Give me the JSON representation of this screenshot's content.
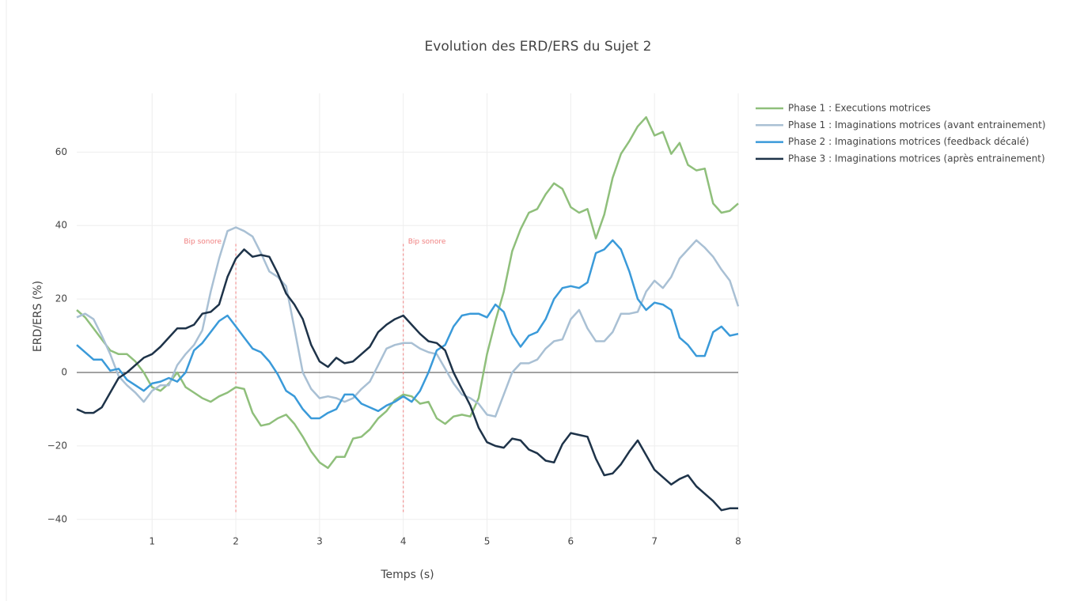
{
  "chart_data": {
    "type": "line",
    "title": "Evolution des ERD/ERS du Sujet 2",
    "x_label": "Temps (s)",
    "y_label": "ERD/ERS (%)",
    "xlim": [
      0.1,
      8
    ],
    "ylim": [
      -45,
      76
    ],
    "xticks": [
      1,
      2,
      3,
      4,
      5,
      6,
      7,
      8
    ],
    "yticks": [
      {
        "value": -40,
        "label": "−40"
      },
      {
        "value": -20,
        "label": "−20"
      },
      0,
      20,
      40,
      60
    ],
    "grid": true,
    "legend": "top-right",
    "x": [
      0.1,
      0.2,
      0.3,
      0.4,
      0.5,
      0.6,
      0.7,
      0.8,
      0.9,
      1.0,
      1.1,
      1.2,
      1.3,
      1.4,
      1.5,
      1.6,
      1.7,
      1.8,
      1.9,
      2.0,
      2.1,
      2.2,
      2.3,
      2.4,
      2.5,
      2.6,
      2.7,
      2.8,
      2.9,
      3.0,
      3.1,
      3.2,
      3.3,
      3.4,
      3.5,
      3.6,
      3.7,
      3.8,
      3.9,
      4.0,
      4.1,
      4.2,
      4.3,
      4.4,
      4.5,
      4.6,
      4.7,
      4.8,
      4.9,
      5.0,
      5.1,
      5.2,
      5.3,
      5.4,
      5.5,
      5.6,
      5.7,
      5.8,
      5.9,
      6.0,
      6.1,
      6.2,
      6.3,
      6.4,
      6.5,
      6.6,
      6.7,
      6.8,
      6.9,
      7.0,
      7.1,
      7.2,
      7.3,
      7.4,
      7.5,
      7.6,
      7.7,
      7.8,
      7.9,
      8.0
    ],
    "series": [
      {
        "name": "Phase 1 : Executions motrices",
        "color": "#8fbf7b",
        "values": [
          17,
          15,
          12,
          9,
          6,
          5,
          5,
          3,
          0,
          -4,
          -5,
          -3,
          0,
          -4,
          -5.5,
          -7,
          -8,
          -6.5,
          -5.5,
          -4,
          -4.5,
          -11,
          -14.5,
          -14,
          -12.5,
          -11.5,
          -14,
          -17.5,
          -21.5,
          -24.5,
          -26,
          -23,
          -23,
          -18,
          -17.5,
          -15.5,
          -12.5,
          -10.5,
          -7.5,
          -6,
          -6.5,
          -8.5,
          -8,
          -12.5,
          -14,
          -12,
          -11.5,
          -12,
          -7,
          5,
          14,
          22,
          33,
          39,
          43.5,
          44.5,
          48.5,
          51.5,
          50,
          45,
          43.5,
          44.5,
          36.5,
          43,
          53,
          59.5,
          63,
          67,
          69.5,
          64.5,
          65.5,
          59.5,
          62.5,
          56.5,
          55,
          55.5,
          46,
          43.5,
          44,
          46
        ]
      },
      {
        "name": "Phase 1 : Imaginations motrices (avant entrainement)",
        "color": "#a9c0d4",
        "values": [
          15,
          16,
          14.5,
          10,
          5,
          -1,
          -3.5,
          -5.5,
          -8,
          -5,
          -3.5,
          -3.5,
          2,
          5,
          7.5,
          11.5,
          22,
          31,
          38.5,
          39.5,
          38.5,
          37,
          32.5,
          27.5,
          26,
          23.5,
          12,
          0,
          -4.5,
          -7,
          -6.5,
          -7,
          -8,
          -7,
          -4.5,
          -2.5,
          2,
          6.5,
          7.5,
          8,
          8,
          6.5,
          5.5,
          5,
          1,
          -3,
          -6,
          -7,
          -8.5,
          -11.5,
          -12,
          -6,
          0,
          2.5,
          2.5,
          3.5,
          6.5,
          8.5,
          9,
          14.5,
          17,
          12,
          8.5,
          8.5,
          11,
          16,
          16,
          16.5,
          22,
          25,
          23,
          26,
          31,
          33.5,
          36,
          34,
          31.5,
          28,
          25,
          18
        ]
      },
      {
        "name": "Phase 2 : Imaginations motrices (feedback décalé)",
        "color": "#3a9ad9",
        "values": [
          7.5,
          5.5,
          3.5,
          3.5,
          0.5,
          1,
          -2,
          -3.5,
          -5,
          -3,
          -2.5,
          -1.5,
          -2.5,
          0,
          6,
          8,
          11,
          14,
          15.5,
          12.5,
          9.5,
          6.5,
          5.5,
          3,
          -0.5,
          -5,
          -6.5,
          -10,
          -12.5,
          -12.5,
          -11,
          -10,
          -6,
          -6,
          -8.5,
          -9.5,
          -10.5,
          -9,
          -8,
          -6.5,
          -8,
          -5,
          0,
          6,
          7.5,
          12.5,
          15.5,
          16,
          16,
          15,
          18.5,
          16.5,
          10.5,
          7,
          10,
          11,
          14.5,
          20,
          23,
          23.5,
          23,
          24.5,
          32.5,
          33.5,
          36,
          33.5,
          27.5,
          20,
          17,
          19,
          18.5,
          17,
          9.5,
          7.5,
          4.5,
          4.5,
          11,
          12.5,
          10,
          10.5
        ]
      },
      {
        "name": "Phase 3 : Imaginations motrices (après entrainement)",
        "color": "#1e3349",
        "values": [
          -10,
          -11,
          -11,
          -9.5,
          -5.5,
          -1.5,
          0,
          2,
          4,
          5,
          7,
          9.5,
          12,
          12,
          13,
          16,
          16.5,
          18.5,
          26,
          31,
          33.5,
          31.5,
          32,
          31.5,
          27,
          21.5,
          18.5,
          14.5,
          7.5,
          3,
          1.5,
          4,
          2.5,
          3,
          5,
          7,
          11,
          13,
          14.5,
          15.5,
          13,
          10.5,
          8.5,
          8,
          6,
          0,
          -4.5,
          -9,
          -15,
          -19,
          -20,
          -20.5,
          -18,
          -18.5,
          -21,
          -22,
          -24,
          -24.5,
          -19.5,
          -16.5,
          -17,
          -17.5,
          -23.5,
          -28,
          -27.5,
          -25,
          -21.5,
          -18.5,
          -22.5,
          -26.5,
          -28.5,
          -30.5,
          -29,
          -28,
          -31,
          -33,
          -35,
          -37.5,
          -37,
          -37
        ]
      }
    ],
    "annotations": [
      {
        "text": "Bip sonore",
        "x": 2,
        "y0": -38,
        "y1": 35,
        "color": "#f08080"
      },
      {
        "text": "Bip sonore",
        "x": 4,
        "y0": -38,
        "y1": 35,
        "color": "#f08080"
      }
    ]
  }
}
